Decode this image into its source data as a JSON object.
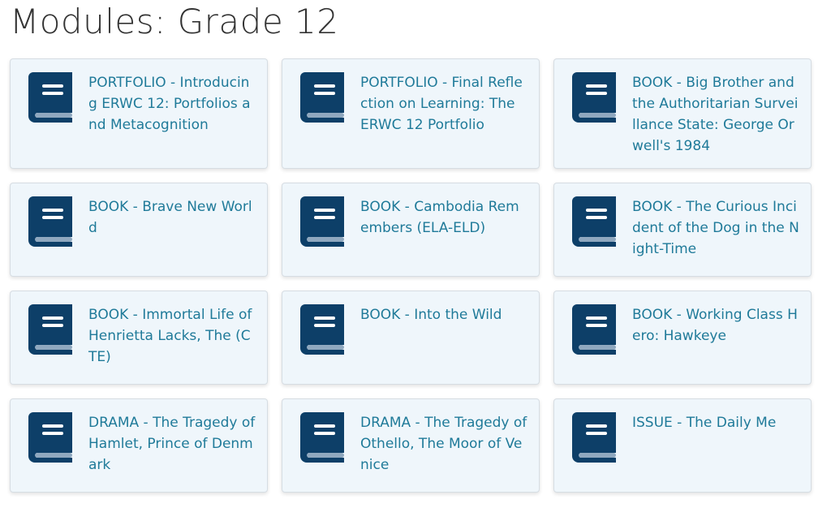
{
  "page_title": "Modules: Grade 12",
  "colors": {
    "link": "#1f7a99",
    "icon": "#0d3f68",
    "card_bg": "#eff6fb"
  },
  "modules": [
    {
      "title": "PORTFOLIO - Introducing ERWC 12: Portfolios and Metacognition",
      "icon": "book-icon"
    },
    {
      "title": "PORTFOLIO - Final Reflection on Learning: The ERWC 12 Portfolio",
      "icon": "book-icon"
    },
    {
      "title": "BOOK - Big Brother and the Authoritarian Surveillance State: George Orwell's 1984",
      "icon": "book-icon"
    },
    {
      "title": "BOOK - Brave New World",
      "icon": "book-icon"
    },
    {
      "title": "BOOK - Cambodia Remembers (ELA-ELD)",
      "icon": "book-icon"
    },
    {
      "title": "BOOK - The Curious Incident of the Dog in the Night-Time",
      "icon": "book-icon"
    },
    {
      "title": "BOOK - Immortal Life of Henrietta Lacks, The (CTE)",
      "icon": "book-icon"
    },
    {
      "title": "BOOK - Into the Wild",
      "icon": "book-icon"
    },
    {
      "title": "BOOK - Working Class Hero: Hawkeye",
      "icon": "book-icon"
    },
    {
      "title": "DRAMA - The Tragedy of Hamlet, Prince of Denmark",
      "icon": "book-icon"
    },
    {
      "title": "DRAMA - The Tragedy of Othello, The Moor of Venice",
      "icon": "book-icon"
    },
    {
      "title": "ISSUE - The Daily Me",
      "icon": "book-icon"
    }
  ]
}
